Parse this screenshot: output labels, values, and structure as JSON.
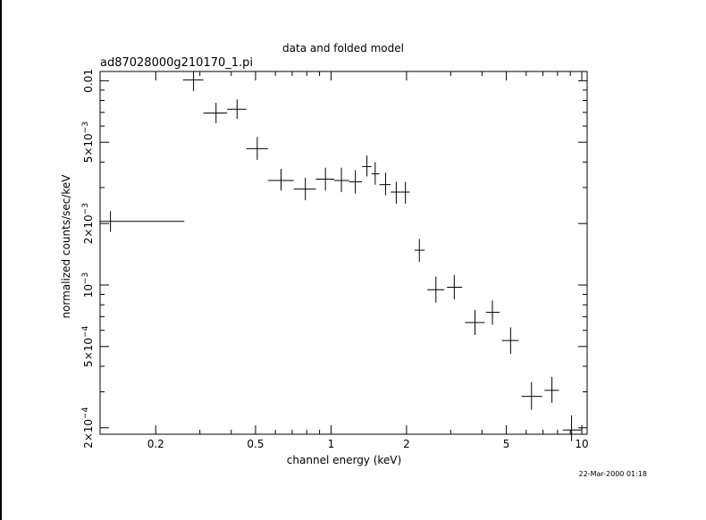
{
  "chart_data": {
    "type": "scatter",
    "title": "data and folded model",
    "subtitle": "ad87028000g210170_1.pi",
    "xlabel": "channel energy (keV)",
    "ylabel": "normalized counts/sec/keV",
    "xscale": "log",
    "yscale": "log",
    "xlim": [
      0.12,
      10.5
    ],
    "ylim": [
      0.000186,
      0.0111
    ],
    "grid": false,
    "xticks": [
      {
        "value": 0.2,
        "label": "0.2"
      },
      {
        "value": 0.5,
        "label": "0.5"
      },
      {
        "value": 1,
        "label": "1"
      },
      {
        "value": 2,
        "label": "2"
      },
      {
        "value": 5,
        "label": "5"
      },
      {
        "value": 10,
        "label": "10"
      }
    ],
    "yticks": [
      {
        "value": 0.01,
        "label": "0.01",
        "base": "",
        "exp": ""
      },
      {
        "value": 0.005,
        "label": "",
        "base": "5×10",
        "exp": "−3"
      },
      {
        "value": 0.002,
        "label": "",
        "base": "2×10",
        "exp": "−3"
      },
      {
        "value": 0.001,
        "label": "",
        "base": "10",
        "exp": "−3"
      },
      {
        "value": 0.0005,
        "label": "",
        "base": "5×10",
        "exp": "−4"
      },
      {
        "value": 0.0002,
        "label": "",
        "base": "2×10",
        "exp": "−4"
      }
    ],
    "series": [
      {
        "points": [
          {
            "x": 0.132,
            "xlo": 0.12,
            "xhi": 0.26,
            "y": 0.00205,
            "ylo": 0.00182,
            "yhi": 0.0023
          },
          {
            "x": 0.283,
            "xlo": 0.257,
            "xhi": 0.31,
            "y": 0.0101,
            "ylo": 0.0089,
            "yhi": 0.0111
          },
          {
            "x": 0.348,
            "xlo": 0.31,
            "xhi": 0.385,
            "y": 0.00695,
            "ylo": 0.0062,
            "yhi": 0.0078
          },
          {
            "x": 0.422,
            "xlo": 0.385,
            "xhi": 0.46,
            "y": 0.00725,
            "ylo": 0.0065,
            "yhi": 0.0081
          },
          {
            "x": 0.508,
            "xlo": 0.46,
            "xhi": 0.56,
            "y": 0.00465,
            "ylo": 0.0041,
            "yhi": 0.0053
          },
          {
            "x": 0.632,
            "xlo": 0.56,
            "xhi": 0.71,
            "y": 0.00325,
            "ylo": 0.0029,
            "yhi": 0.0037
          },
          {
            "x": 0.79,
            "xlo": 0.71,
            "xhi": 0.87,
            "y": 0.00295,
            "ylo": 0.0026,
            "yhi": 0.00335
          },
          {
            "x": 0.95,
            "xlo": 0.87,
            "xhi": 1.03,
            "y": 0.0033,
            "ylo": 0.0029,
            "yhi": 0.00375
          },
          {
            "x": 1.1,
            "xlo": 1.03,
            "xhi": 1.18,
            "y": 0.00325,
            "ylo": 0.00285,
            "yhi": 0.00375
          },
          {
            "x": 1.25,
            "xlo": 1.18,
            "xhi": 1.33,
            "y": 0.0032,
            "ylo": 0.0028,
            "yhi": 0.00365
          },
          {
            "x": 1.39,
            "xlo": 1.33,
            "xhi": 1.45,
            "y": 0.0038,
            "ylo": 0.0034,
            "yhi": 0.0043
          },
          {
            "x": 1.5,
            "xlo": 1.45,
            "xhi": 1.56,
            "y": 0.0035,
            "ylo": 0.0031,
            "yhi": 0.004
          },
          {
            "x": 1.65,
            "xlo": 1.56,
            "xhi": 1.73,
            "y": 0.0031,
            "ylo": 0.00275,
            "yhi": 0.00355
          },
          {
            "x": 1.82,
            "xlo": 1.73,
            "xhi": 1.9,
            "y": 0.00285,
            "ylo": 0.0025,
            "yhi": 0.0032
          },
          {
            "x": 1.98,
            "xlo": 1.9,
            "xhi": 2.06,
            "y": 0.00285,
            "ylo": 0.0025,
            "yhi": 0.0032
          },
          {
            "x": 2.25,
            "xlo": 2.15,
            "xhi": 2.36,
            "y": 0.00148,
            "ylo": 0.0013,
            "yhi": 0.00168
          },
          {
            "x": 2.62,
            "xlo": 2.42,
            "xhi": 2.83,
            "y": 0.000948,
            "ylo": 0.00082,
            "yhi": 0.0011
          },
          {
            "x": 3.1,
            "xlo": 2.9,
            "xhi": 3.33,
            "y": 0.000975,
            "ylo": 0.00085,
            "yhi": 0.00112
          },
          {
            "x": 3.75,
            "xlo": 3.42,
            "xhi": 4.1,
            "y": 0.000655,
            "ylo": 0.00057,
            "yhi": 0.000755
          },
          {
            "x": 4.4,
            "xlo": 4.15,
            "xhi": 4.7,
            "y": 0.000735,
            "ylo": 0.00064,
            "yhi": 0.00084
          },
          {
            "x": 5.2,
            "xlo": 4.8,
            "xhi": 5.6,
            "y": 0.000535,
            "ylo": 0.00046,
            "yhi": 0.00062
          },
          {
            "x": 6.3,
            "xlo": 5.75,
            "xhi": 6.95,
            "y": 0.000285,
            "ylo": 0.000245,
            "yhi": 0.000335
          },
          {
            "x": 7.6,
            "xlo": 7.1,
            "xhi": 8.1,
            "y": 0.000305,
            "ylo": 0.000265,
            "yhi": 0.000355
          },
          {
            "x": 9.1,
            "xlo": 8.4,
            "xhi": 10.0,
            "y": 0.000195,
            "ylo": 0.000172,
            "yhi": 0.00023
          }
        ]
      }
    ]
  },
  "footer": {
    "timestamp": "22-Mar-2000 01:18"
  }
}
